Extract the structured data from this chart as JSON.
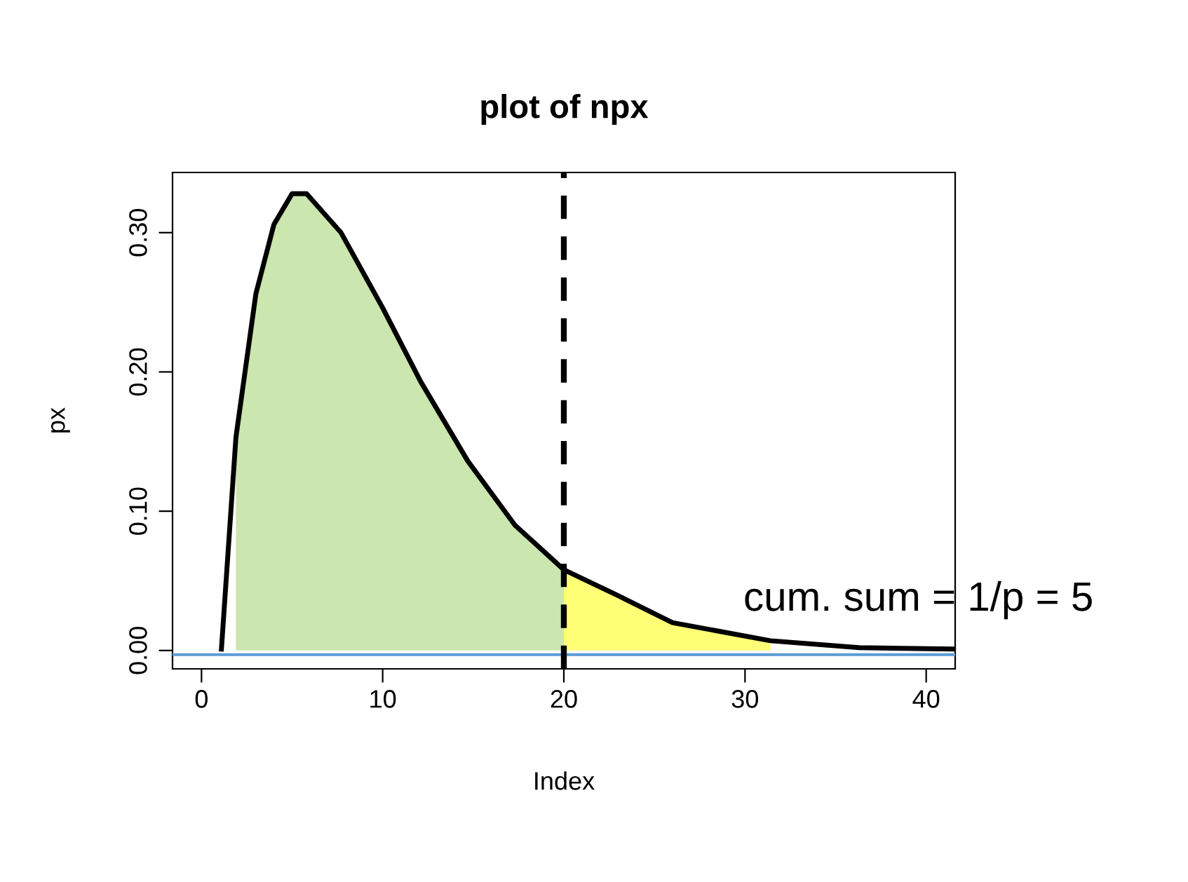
{
  "chart_data": {
    "type": "line",
    "title": "plot of npx",
    "xlabel": "Index",
    "ylabel": "px",
    "xlim": [
      -1.6,
      41.6
    ],
    "ylim": [
      -0.0132,
      0.3432
    ],
    "xticks": [
      0,
      10,
      20,
      30,
      40
    ],
    "yticks": [
      {
        "value": 0,
        "label": "0.00"
      },
      {
        "value": 0.1,
        "label": "0.10"
      },
      {
        "value": 0.2,
        "label": "0.20"
      },
      {
        "value": 0.3,
        "label": "0.30"
      }
    ],
    "series": [
      {
        "type": "area",
        "color": "#c5e3a5",
        "x": [
          1.9,
          3.0,
          4.0,
          5.0,
          5.8,
          7.7,
          10,
          12.1,
          14.7,
          17.3,
          20
        ],
        "values": [
          0.153,
          0.256,
          0.306,
          0.328,
          0.328,
          0.3,
          0.246,
          0.193,
          0.136,
          0.09,
          0.058
        ]
      },
      {
        "type": "area",
        "color": "#ffff66",
        "x": [
          20,
          22.9,
          26,
          31.4
        ],
        "values": [
          0.058,
          0.04,
          0.02,
          0.007
        ]
      },
      {
        "color": "#000000",
        "x": [
          1.1,
          1.9,
          3.0,
          4.0,
          5.0,
          5.8,
          7.7,
          10,
          12.1,
          14.7,
          17.3,
          20,
          22.9,
          26,
          31.4,
          36.3,
          41.5
        ],
        "values": [
          0.001,
          0.153,
          0.256,
          0.306,
          0.328,
          0.328,
          0.3,
          0.246,
          0.193,
          0.136,
          0.09,
          0.058,
          0.04,
          0.02,
          0.007,
          0.002,
          0.001
        ]
      }
    ],
    "ref_lines": [
      {
        "axis": "x",
        "value": 20,
        "color": "#000000",
        "line_style": "dashed"
      },
      {
        "axis": "y",
        "value": -0.003,
        "color": "#5b9bd5",
        "line_style": "solid"
      }
    ],
    "annotations": [
      "cum. sum = 1/p = 5"
    ],
    "grid": false,
    "legend": false,
    "line_style": "solid",
    "marker": "none"
  }
}
